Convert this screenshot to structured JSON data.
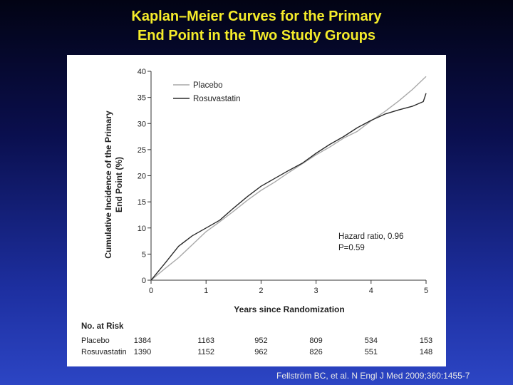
{
  "slide": {
    "title_line1": "Kaplan–Meier Curves for the Primary",
    "title_line2": "End Point in the Two Study Groups",
    "citation": "Fellström BC, et al. N Engl J Med 2009;360:1455-7"
  },
  "colors": {
    "title": "#f5ec2a",
    "placebo_line": "#a9a9a9",
    "rosuvastatin_line": "#2b2b2b"
  },
  "chart_data": {
    "type": "line",
    "title": "",
    "xlabel": "Years since Randomization",
    "ylabel_line1": "Cumulative Incidence of the Primary",
    "ylabel_line2": "End Point (%)",
    "xlim": [
      0,
      5
    ],
    "ylim": [
      0,
      40
    ],
    "x_ticks": [
      "0",
      "1",
      "2",
      "3",
      "4",
      "5"
    ],
    "y_ticks": [
      "0",
      "5",
      "10",
      "15",
      "20",
      "25",
      "30",
      "35",
      "40"
    ],
    "legend_position": "top-left",
    "annotation_line1": "Hazard ratio, 0.96",
    "annotation_line2": "P=0.59",
    "series": [
      {
        "name": "Placebo",
        "x": [
          0,
          0.25,
          0.5,
          0.75,
          1.0,
          1.25,
          1.5,
          1.75,
          2.0,
          2.25,
          2.5,
          2.75,
          3.0,
          3.25,
          3.5,
          3.75,
          4.0,
          4.25,
          4.5,
          4.75,
          5.0
        ],
        "y": [
          0,
          2.2,
          4.3,
          6.8,
          9.3,
          11.2,
          13.2,
          15.3,
          17.2,
          18.8,
          20.6,
          22.3,
          24.0,
          25.5,
          27.2,
          28.5,
          30.5,
          32.3,
          34.3,
          36.5,
          39.0
        ]
      },
      {
        "name": "Rosuvastatin",
        "x": [
          0,
          0.25,
          0.5,
          0.75,
          1.0,
          1.25,
          1.5,
          1.75,
          2.0,
          2.25,
          2.5,
          2.75,
          3.0,
          3.25,
          3.5,
          3.75,
          4.0,
          4.25,
          4.5,
          4.75,
          4.95,
          5.0
        ],
        "y": [
          0,
          3.2,
          6.5,
          8.5,
          10.0,
          11.5,
          13.8,
          16.0,
          18.0,
          19.5,
          21.0,
          22.4,
          24.3,
          26.0,
          27.5,
          29.2,
          30.6,
          31.8,
          32.6,
          33.3,
          34.2,
          35.8
        ]
      }
    ],
    "risk_table": {
      "header": "No. at Risk",
      "rows": [
        {
          "label": "Placebo",
          "values": [
            "1384",
            "1163",
            "952",
            "809",
            "534",
            "153"
          ]
        },
        {
          "label": "Rosuvastatin",
          "values": [
            "1390",
            "1152",
            "962",
            "826",
            "551",
            "148"
          ]
        }
      ]
    }
  }
}
